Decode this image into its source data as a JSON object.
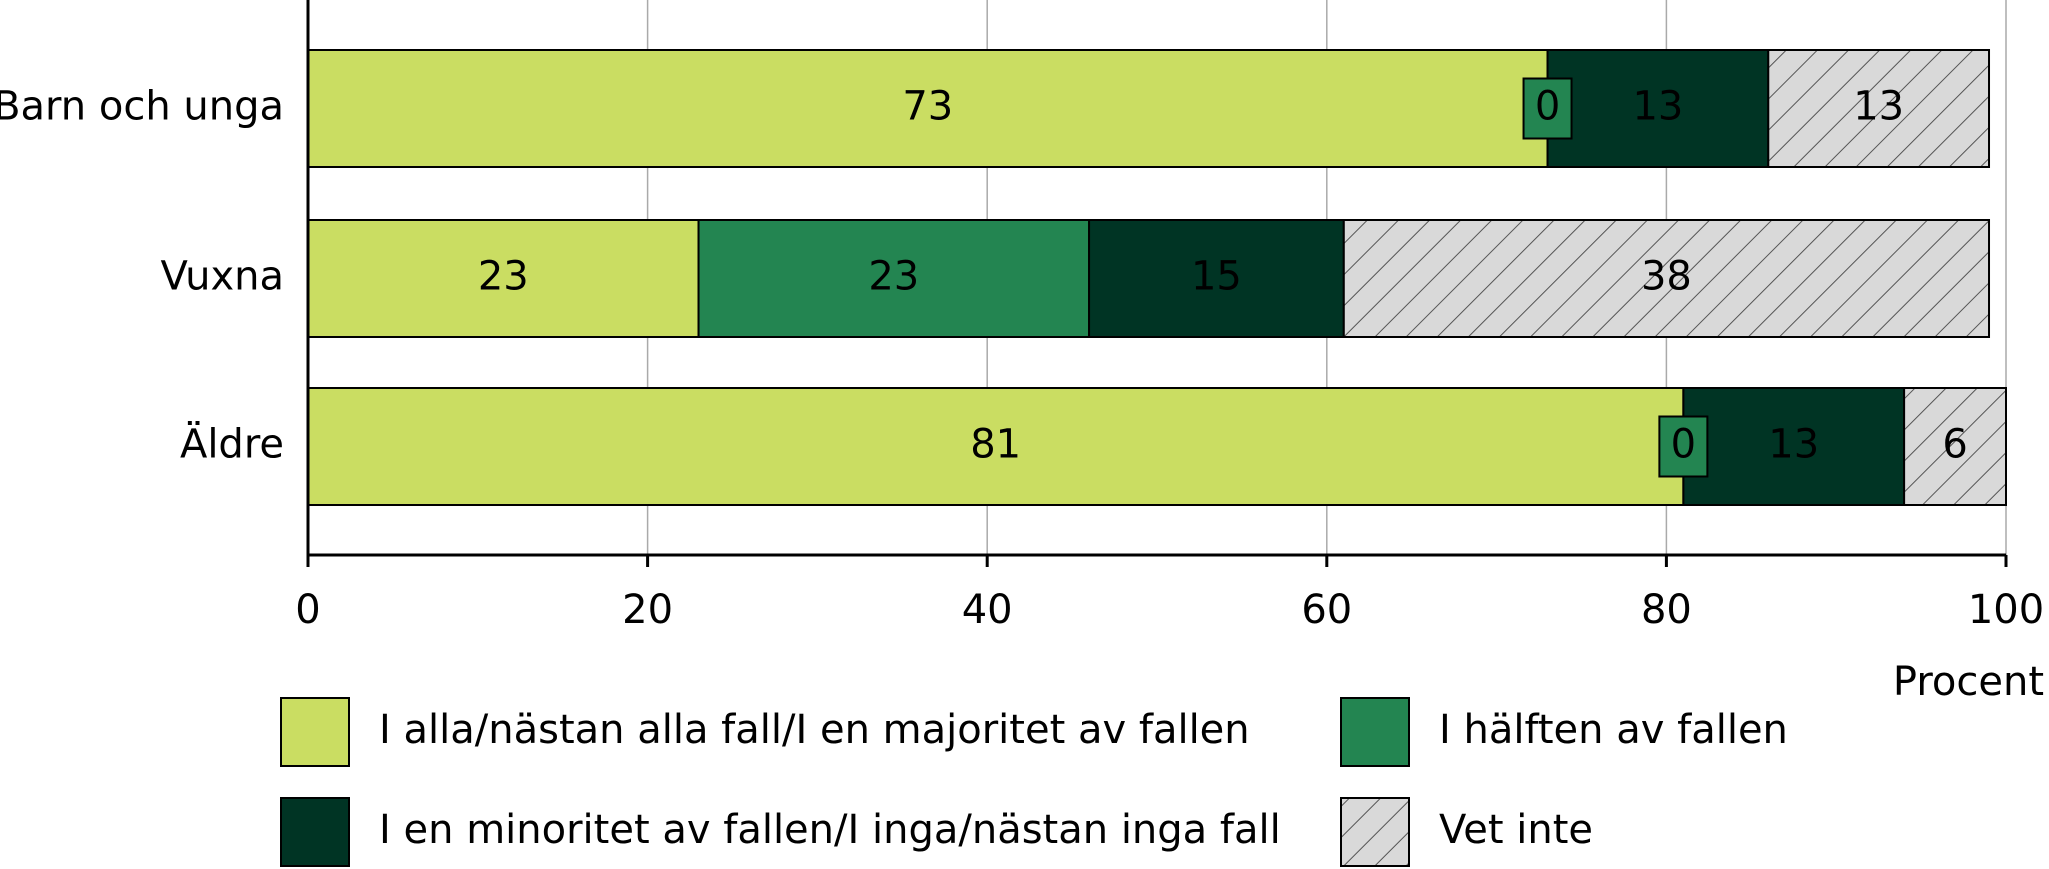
{
  "chart_data": {
    "type": "stacked_barh",
    "categories": [
      "Barn och unga",
      "Vuxna",
      "Äldre"
    ],
    "series": [
      {
        "name": "I alla/nästan alla fall/I en majoritet av fallen",
        "color": "#cadd62",
        "values": [
          73,
          23,
          81
        ]
      },
      {
        "name": "I hälften av fallen",
        "color": "#238551",
        "values": [
          0,
          23,
          0
        ]
      },
      {
        "name": "I en minoritet av fallen/I inga/nästan inga fall",
        "color": "#003424",
        "values": [
          13,
          15,
          13
        ]
      },
      {
        "name": "Vet inte",
        "color": "#d9d9d9",
        "hatch": true,
        "values": [
          13,
          38,
          6
        ]
      }
    ],
    "xlabel": "Procent",
    "xlim": [
      0,
      100
    ],
    "xticks": [
      0,
      20,
      40,
      60,
      80,
      100
    ],
    "grid": true
  }
}
